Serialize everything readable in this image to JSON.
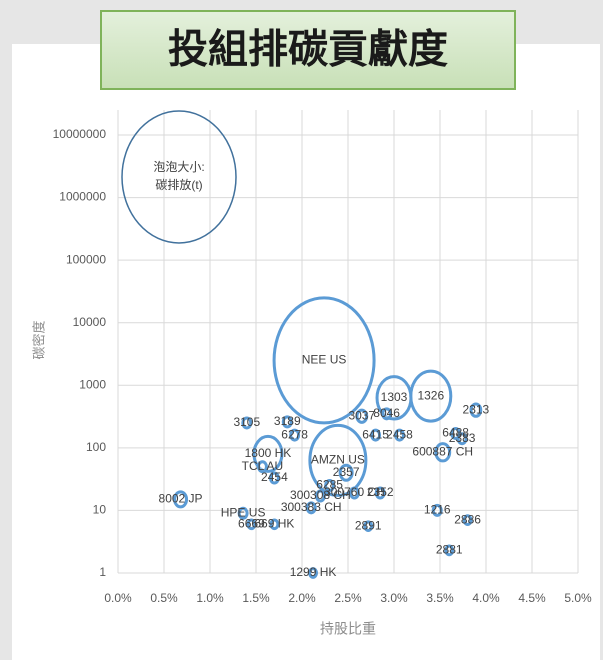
{
  "chart_data": {
    "type": "bubble",
    "title": "投組排碳貢獻度",
    "xlabel": "持股比重",
    "ylabel": "碳密度",
    "legend_label": [
      "泡泡大小:",
      "碳排放(t)"
    ],
    "log_y": true,
    "grid": true,
    "color": "#5b9bd5",
    "xlim": [
      0,
      5
    ],
    "xticks": [
      {
        "value": 0,
        "label": "0.0%"
      },
      {
        "value": 0.5,
        "label": "0.5%"
      },
      {
        "value": 1,
        "label": "1.0%"
      },
      {
        "value": 1.5,
        "label": "1.5%"
      },
      {
        "value": 2,
        "label": "2.0%"
      },
      {
        "value": 2.5,
        "label": "2.5%"
      },
      {
        "value": 3,
        "label": "3.0%"
      },
      {
        "value": 3.5,
        "label": "3.5%"
      },
      {
        "value": 4,
        "label": "4.0%"
      },
      {
        "value": 4.5,
        "label": "4.5%"
      },
      {
        "value": 5,
        "label": "5.0%"
      }
    ],
    "ylim": [
      1,
      10000000
    ],
    "yticks": [
      1,
      10,
      100,
      1000,
      10000,
      100000,
      1000000,
      10000000
    ],
    "labels": [
      "8002 JP",
      "3105",
      "3189",
      "6278",
      "1800 HK",
      "TCL AU",
      "2454",
      "HPE US",
      "6669",
      "669 HK",
      "NEE US",
      "1303",
      "1326",
      "3037",
      "8046",
      "6415",
      "2458",
      "2313",
      "6488",
      "2383",
      "600887 CH",
      "AMZN US",
      "2357",
      "6285",
      "300308 CH",
      "300760 CH",
      "2352",
      "300383 CH",
      "2891",
      "1216",
      "2886",
      "2881",
      "1299 HK"
    ],
    "x": [
      0.68,
      1.4,
      1.84,
      1.92,
      1.63,
      1.57,
      1.7,
      1.36,
      1.45,
      1.7,
      2.24,
      3.0,
      3.4,
      2.65,
      2.92,
      2.8,
      3.06,
      3.89,
      3.67,
      3.74,
      3.53,
      2.39,
      2.48,
      2.3,
      2.2,
      2.57,
      2.85,
      2.1,
      2.72,
      3.47,
      3.8,
      3.6,
      2.12
    ],
    "values": [
      15,
      250,
      260,
      160,
      80,
      50,
      33,
      9,
      6,
      6,
      2500,
      630,
      670,
      320,
      350,
      160,
      160,
      400,
      170,
      140,
      85,
      63,
      40,
      25,
      17,
      19,
      19,
      11,
      5.6,
      10,
      7,
      2.3,
      1
    ],
    "sizes": [
      9,
      4,
      4,
      4,
      49,
      4,
      4,
      4,
      3,
      3,
      625,
      72,
      100,
      6,
      4,
      4,
      4,
      6,
      4,
      4,
      12,
      196,
      9,
      4,
      4,
      4,
      4,
      4,
      3,
      4,
      3,
      3,
      3
    ]
  }
}
